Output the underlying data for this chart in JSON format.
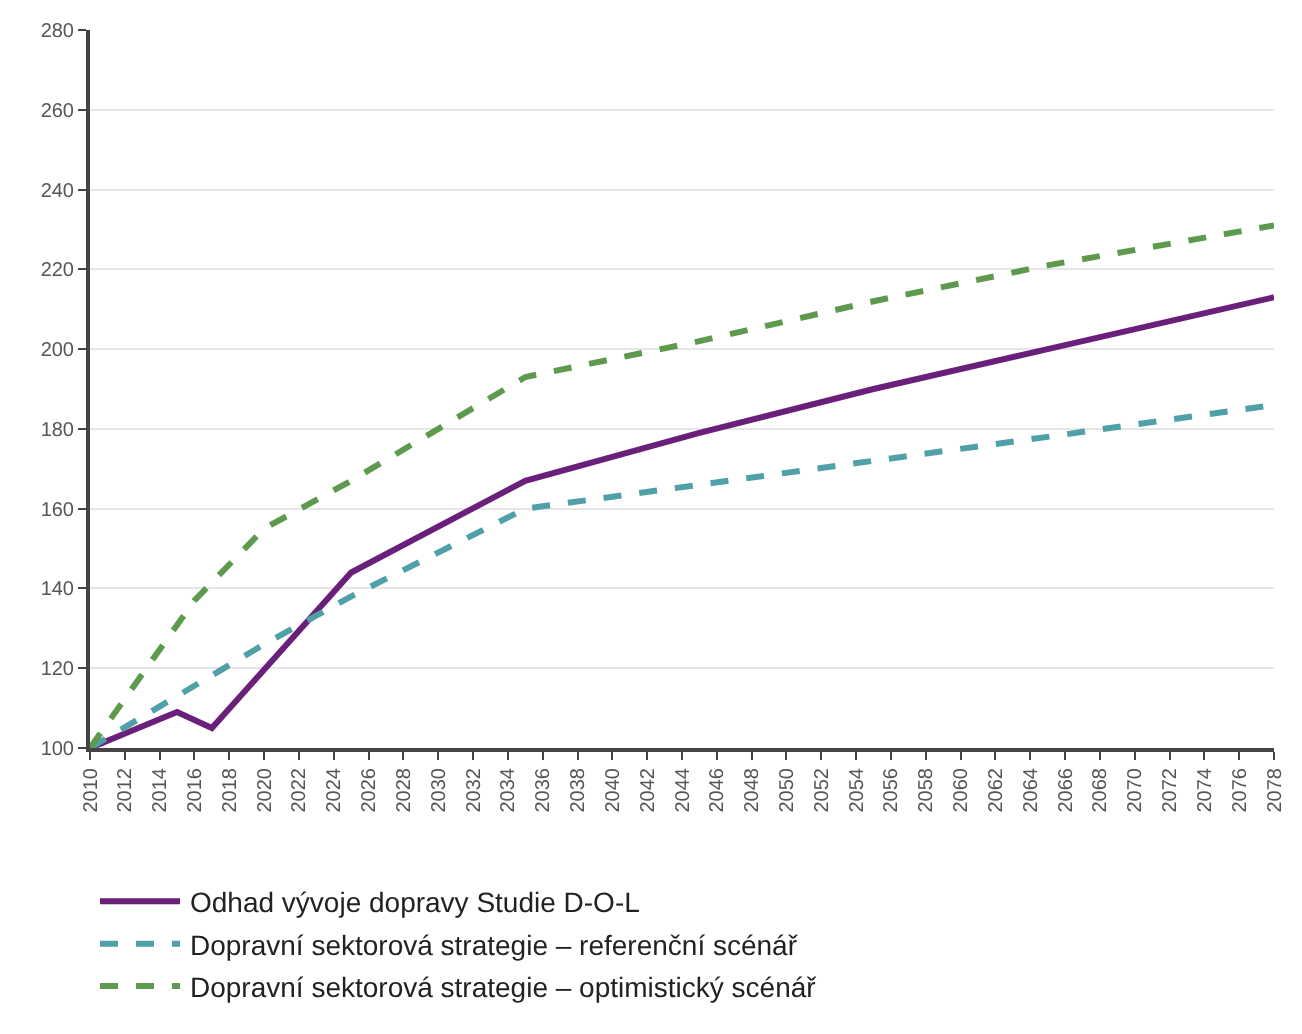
{
  "chart_data": {
    "type": "line",
    "xlim": [
      2010,
      2078
    ],
    "xticks": [
      2010,
      2012,
      2014,
      2016,
      2018,
      2020,
      2022,
      2024,
      2026,
      2028,
      2030,
      2032,
      2034,
      2036,
      2038,
      2040,
      2042,
      2044,
      2046,
      2048,
      2050,
      2052,
      2054,
      2056,
      2058,
      2060,
      2062,
      2064,
      2066,
      2068,
      2070,
      2072,
      2074,
      2076,
      2078
    ],
    "ylim": [
      100,
      280
    ],
    "yticks": [
      100,
      120,
      140,
      160,
      180,
      200,
      220,
      240,
      260,
      280
    ],
    "grid": "y",
    "legend": "bottom",
    "series": [
      {
        "name": "Odhad vývoje dopravy Studie D-O-L",
        "color": "#6a1f7a",
        "line_style": "solid",
        "x": [
          2010,
          2015,
          2017,
          2025,
          2035,
          2045,
          2055,
          2065,
          2078
        ],
        "values": [
          100,
          109,
          105,
          144,
          167,
          179,
          190,
          200,
          213
        ]
      },
      {
        "name": "Dopravní sektorová strategie – referenční scénář",
        "color": "#4fa0a8",
        "line_style": "dashed",
        "x": [
          2010,
          2020,
          2025,
          2035,
          2045,
          2055,
          2065,
          2078
        ],
        "values": [
          100,
          126,
          138,
          160,
          166,
          172,
          178,
          186
        ]
      },
      {
        "name": "Dopravní sektorová strategie – optimistický scénář",
        "color": "#5e9a4e",
        "line_style": "dashed",
        "x": [
          2010,
          2016,
          2020,
          2025,
          2035,
          2045,
          2055,
          2065,
          2078
        ],
        "values": [
          100,
          137,
          155,
          167,
          193,
          202,
          212,
          221,
          231
        ]
      }
    ]
  }
}
